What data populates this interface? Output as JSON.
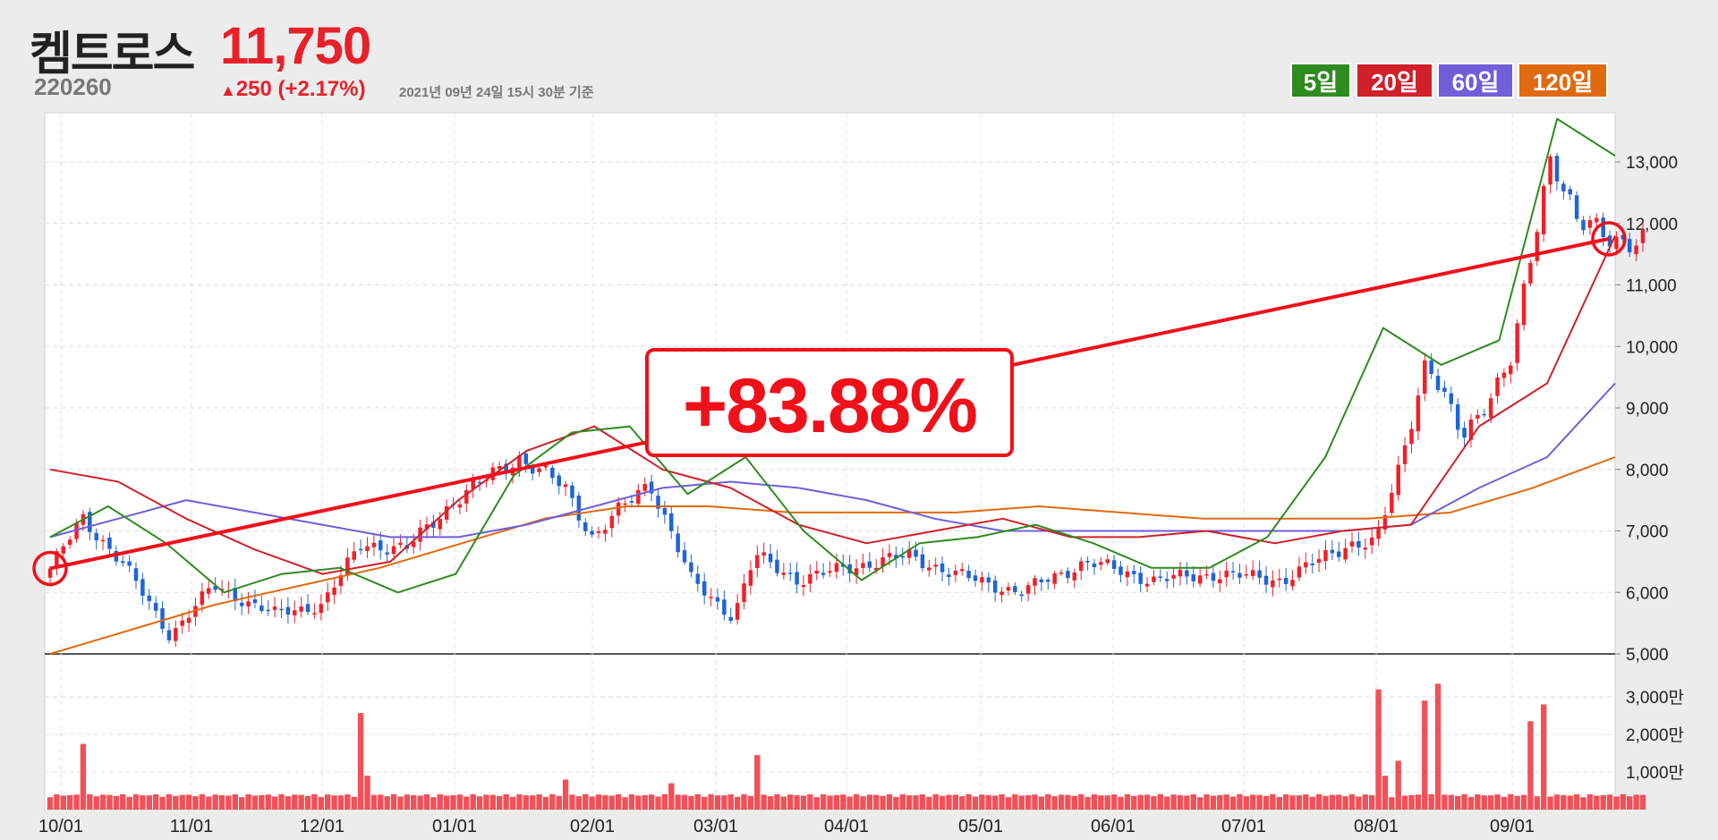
{
  "header": {
    "name": "켐트로스",
    "code": "220260",
    "price": "11,750",
    "change_arrow": "▲",
    "change": "250 (+2.17%)",
    "timestamp": "2021년 09년 24일 15시 30분 기준"
  },
  "legend": [
    {
      "label": "5일",
      "color": "#2e8b1f"
    },
    {
      "label": "20일",
      "color": "#d0202a"
    },
    {
      "label": "60일",
      "color": "#6f5fd8"
    },
    {
      "label": "120일",
      "color": "#e06a10"
    }
  ],
  "annotation": {
    "text": "+83.88%",
    "start": {
      "date": "09/30",
      "value": 6390
    },
    "end": {
      "date": "09/24",
      "value": 11750
    }
  },
  "chart_data": [
    {
      "type": "candlestick",
      "title": "",
      "x_tick_labels": [
        "10/01",
        "11/01",
        "12/01",
        "01/01",
        "02/01",
        "03/01",
        "04/01",
        "05/01",
        "06/01",
        "07/01",
        "08/01",
        "09/01"
      ],
      "y_tick_labels": [
        "5,000",
        "6,000",
        "7,000",
        "8,000",
        "9,000",
        "10,000",
        "11,000",
        "12,000",
        "13,000"
      ],
      "ylim": [
        5000,
        13800
      ],
      "grid": true,
      "series": [
        {
          "name": "5일",
          "color": "#2e8b1f"
        },
        {
          "name": "20일",
          "color": "#d0202a"
        },
        {
          "name": "60일",
          "color": "#6f5fd8"
        },
        {
          "name": "120일",
          "color": "#e06a10"
        }
      ],
      "close_approx": [
        {
          "date": "09/30",
          "value": 6390
        },
        {
          "date": "10/06",
          "value": 7200
        },
        {
          "date": "10/15",
          "value": 6500
        },
        {
          "date": "10/26",
          "value": 5300
        },
        {
          "date": "11/06",
          "value": 6100
        },
        {
          "date": "11/20",
          "value": 5650
        },
        {
          "date": "12/01",
          "value": 5800
        },
        {
          "date": "12/10",
          "value": 6800
        },
        {
          "date": "12/20",
          "value": 6700
        },
        {
          "date": "01/01",
          "value": 7500
        },
        {
          "date": "01/15",
          "value": 8200
        },
        {
          "date": "01/25",
          "value": 7700
        },
        {
          "date": "02/01",
          "value": 6900
        },
        {
          "date": "02/15",
          "value": 7800
        },
        {
          "date": "02/25",
          "value": 6200
        },
        {
          "date": "03/05",
          "value": 5600
        },
        {
          "date": "03/10",
          "value": 6600
        },
        {
          "date": "03/20",
          "value": 6200
        },
        {
          "date": "04/01",
          "value": 6400
        },
        {
          "date": "04/15",
          "value": 6600
        },
        {
          "date": "04/25",
          "value": 6300
        },
        {
          "date": "05/10",
          "value": 6000
        },
        {
          "date": "05/25",
          "value": 6500
        },
        {
          "date": "06/10",
          "value": 6200
        },
        {
          "date": "06/25",
          "value": 6300
        },
        {
          "date": "07/10",
          "value": 6200
        },
        {
          "date": "07/25",
          "value": 6800
        },
        {
          "date": "08/01",
          "value": 6800
        },
        {
          "date": "08/06",
          "value": 8000
        },
        {
          "date": "08/12",
          "value": 9800
        },
        {
          "date": "08/20",
          "value": 8500
        },
        {
          "date": "09/01",
          "value": 9800
        },
        {
          "date": "09/10",
          "value": 13200
        },
        {
          "date": "09/16",
          "value": 12000
        },
        {
          "date": "09/24",
          "value": 11750
        }
      ],
      "ma_approx": {
        "5일": [
          6900,
          7400,
          6800,
          6000,
          6300,
          6400,
          6000,
          6300,
          7900,
          8600,
          8700,
          7600,
          8200,
          7000,
          6200,
          6800,
          6900,
          7100,
          6800,
          6400,
          6400,
          6900,
          8200,
          10300,
          9700,
          10100,
          13700,
          13100
        ],
        "20일": [
          8000,
          7800,
          7200,
          6700,
          6300,
          6500,
          7500,
          8300,
          8700,
          8000,
          7700,
          7100,
          6800,
          7000,
          7200,
          6900,
          6900,
          7000,
          6800,
          7000,
          7100,
          8700,
          9400,
          11800
        ],
        "60일": [
          6900,
          7200,
          7500,
          7300,
          7100,
          6900,
          6900,
          7100,
          7400,
          7700,
          7800,
          7700,
          7500,
          7200,
          7000,
          7000,
          7000,
          7000,
          7000,
          7000,
          7100,
          7700,
          8200,
          9400
        ],
        "120일": [
          5000,
          5400,
          5800,
          6100,
          6400,
          6800,
          7200,
          7400,
          7400,
          7300,
          7300,
          7300,
          7400,
          7300,
          7200,
          7200,
          7200,
          7300,
          7700,
          8200
        ]
      }
    },
    {
      "type": "bar",
      "title": "",
      "x_tick_labels": [
        "10/01",
        "11/01",
        "12/01",
        "01/01",
        "02/01",
        "03/01",
        "04/01",
        "05/01",
        "06/01",
        "07/01",
        "08/01",
        "09/01"
      ],
      "y_tick_labels": [
        "1,000만",
        "2,000만",
        "3,000만"
      ],
      "ylim": [
        0,
        3500
      ],
      "volume_approx": [
        {
          "date": "10/06",
          "value": 1750
        },
        {
          "date": "12/10",
          "value": 2570
        },
        {
          "date": "12/12",
          "value": 900
        },
        {
          "date": "01/25",
          "value": 800
        },
        {
          "date": "02/20",
          "value": 700
        },
        {
          "date": "03/10",
          "value": 1450
        },
        {
          "date": "08/01",
          "value": 3200
        },
        {
          "date": "08/03",
          "value": 900
        },
        {
          "date": "08/06",
          "value": 1300
        },
        {
          "date": "08/12",
          "value": 2900
        },
        {
          "date": "08/14",
          "value": 3350
        },
        {
          "date": "09/06",
          "value": 2350
        },
        {
          "date": "09/08",
          "value": 2800
        }
      ]
    }
  ]
}
